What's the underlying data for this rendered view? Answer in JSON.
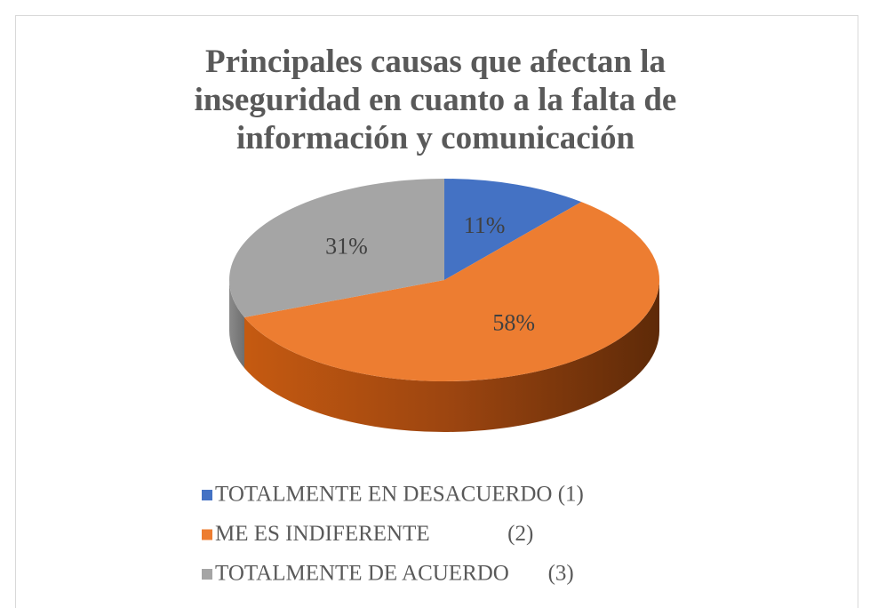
{
  "chart_data": {
    "type": "pie3d",
    "title": "Principales causas que afectan la inseguridad en cuanto a la falta de información y comunicación",
    "categories": [
      "TOTALMENTE EN DESACUERDO (1)",
      "ME ES INDIFERENTE              (2)",
      "TOTALMENTE DE ACUERDO       (3)"
    ],
    "values": [
      11,
      58,
      31
    ],
    "value_labels": [
      "11%",
      "58%",
      "31%"
    ],
    "colors": [
      "#4472c4",
      "#ed7d31",
      "#a5a5a5"
    ],
    "legend": "bottom"
  }
}
